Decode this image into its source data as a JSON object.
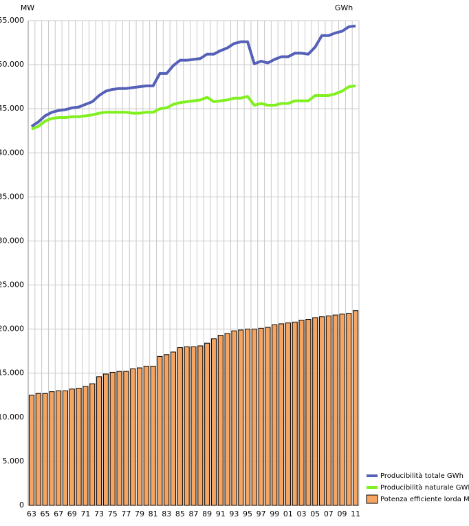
{
  "chart_data": {
    "type": "combo",
    "y_label_left": "MW",
    "y_label_right": "GWh",
    "categories": [
      "63",
      null,
      "65",
      null,
      "67",
      null,
      "69",
      null,
      "71",
      null,
      "73",
      null,
      "75",
      null,
      "77",
      null,
      "79",
      null,
      "81",
      null,
      "83",
      null,
      "85",
      null,
      "87",
      null,
      "89",
      null,
      "91",
      null,
      "93",
      null,
      "95",
      null,
      "97",
      null,
      "99",
      null,
      "01",
      null,
      "03",
      null,
      "05",
      null,
      "07",
      null,
      "09",
      null,
      "11"
    ],
    "ylim": [
      0,
      55000
    ],
    "yticks": [
      0,
      {
        "value": 5000,
        "label": "5.000"
      },
      {
        "value": 10000,
        "label": "10.000"
      },
      {
        "value": 15000,
        "label": "15.000"
      },
      {
        "value": 20000,
        "label": "20.000"
      },
      {
        "value": 25000,
        "label": "25.000"
      },
      {
        "value": 30000,
        "label": "30.000"
      },
      {
        "value": 35000,
        "label": "35.000"
      },
      {
        "value": 40000,
        "label": "40.000"
      },
      {
        "value": 45000,
        "label": "45.000"
      },
      {
        "value": 50000,
        "label": "50.000"
      },
      {
        "value": 55000,
        "label": "55.000"
      }
    ],
    "grid": true,
    "series": [
      {
        "name": "Producibilità totale GWh",
        "type": "line",
        "color": "#5560b8",
        "values": [
          43000,
          43500,
          44200,
          44600,
          44800,
          44900,
          45100,
          45200,
          45500,
          45800,
          46500,
          47000,
          47200,
          47300,
          47300,
          47400,
          47500,
          47600,
          47600,
          49000,
          49000,
          49900,
          50500,
          50500,
          50600,
          50700,
          51200,
          51200,
          51600,
          51900,
          52400,
          52600,
          52600,
          50100,
          50400,
          50200,
          50600,
          50900,
          50900,
          51300,
          51300,
          51200,
          52000,
          53300,
          53300,
          53600,
          53800,
          54300,
          54400
        ]
      },
      {
        "name": "Producibilità naturale GWh",
        "type": "line",
        "color": "#80f020",
        "values": [
          42700,
          43000,
          43600,
          43900,
          44000,
          44000,
          44100,
          44100,
          44200,
          44300,
          44500,
          44600,
          44600,
          44600,
          44600,
          44500,
          44500,
          44600,
          44600,
          45000,
          45100,
          45500,
          45700,
          45800,
          45900,
          46000,
          46300,
          45800,
          45900,
          46000,
          46200,
          46200,
          46400,
          45400,
          45600,
          45400,
          45400,
          45600,
          45600,
          45900,
          45900,
          45900,
          46500,
          46500,
          46500,
          46700,
          47000,
          47500,
          47600
        ]
      },
      {
        "name": "Potenza efficiente lorda MW",
        "type": "bar",
        "color": "#f5a462",
        "values": [
          12500,
          12700,
          12700,
          12900,
          13000,
          13000,
          13200,
          13300,
          13500,
          13800,
          14600,
          14900,
          15100,
          15200,
          15200,
          15500,
          15600,
          15800,
          15800,
          16900,
          17100,
          17400,
          17900,
          18000,
          18000,
          18100,
          18400,
          18900,
          19300,
          19500,
          19800,
          19900,
          20000,
          20000,
          20100,
          20200,
          20500,
          20600,
          20700,
          20800,
          21000,
          21100,
          21300,
          21400,
          21500,
          21600,
          21700,
          21800,
          22100
        ]
      }
    ]
  }
}
